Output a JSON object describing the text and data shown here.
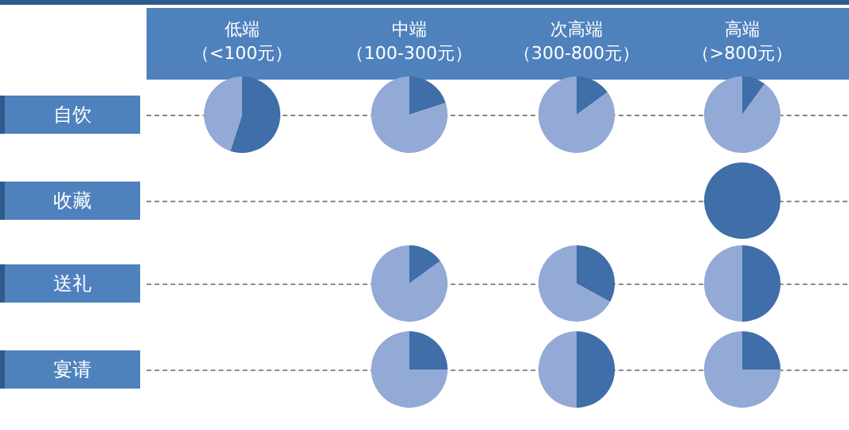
{
  "chart_data": [
    {
      "type": "other",
      "categories": [
        "低端（<100元）",
        "中端（100-300元）",
        "次高端（300-800元）",
        "高端（>800元）"
      ],
      "y_categories": [
        "自饮",
        "收藏",
        "送礼",
        "宴请"
      ]
    },
    {
      "type": "pie",
      "categories": [
        null,
        null
      ],
      "values": [
        55,
        45
      ],
      "colors": [
        "#3f6ea8",
        "#93a9d6"
      ]
    },
    {
      "type": "pie",
      "categories": [
        null,
        null
      ],
      "values": [
        20,
        80
      ],
      "colors": [
        "#3f6ea8",
        "#93a9d6"
      ]
    },
    {
      "type": "pie",
      "categories": [
        null,
        null
      ],
      "values": [
        15,
        85
      ],
      "colors": [
        "#3f6ea8",
        "#93a9d6"
      ]
    },
    {
      "type": "pie",
      "categories": [
        null,
        null
      ],
      "values": [
        10,
        90
      ],
      "colors": [
        "#3f6ea8",
        "#93a9d6"
      ]
    },
    {
      "type": "pie",
      "categories": [
        null
      ],
      "values": [
        100
      ],
      "colors": [
        "#3f6ea8"
      ]
    },
    {
      "type": "pie",
      "categories": [
        null,
        null
      ],
      "values": [
        15,
        85
      ],
      "colors": [
        "#3f6ea8",
        "#93a9d6"
      ]
    },
    {
      "type": "pie",
      "categories": [
        null,
        null
      ],
      "values": [
        33,
        67
      ],
      "colors": [
        "#3f6ea8",
        "#93a9d6"
      ]
    },
    {
      "type": "pie",
      "categories": [
        null,
        null
      ],
      "values": [
        50,
        50
      ],
      "colors": [
        "#3f6ea8",
        "#93a9d6"
      ]
    },
    {
      "type": "pie",
      "categories": [
        null,
        null
      ],
      "values": [
        25,
        75
      ],
      "colors": [
        "#3f6ea8",
        "#93a9d6"
      ]
    },
    {
      "type": "pie",
      "categories": [
        null,
        null
      ],
      "values": [
        50,
        50
      ],
      "colors": [
        "#3f6ea8",
        "#93a9d6"
      ]
    },
    {
      "type": "pie",
      "categories": [
        null,
        null
      ],
      "values": [
        25,
        75
      ],
      "colors": [
        "#3f6ea8",
        "#93a9d6"
      ]
    }
  ]
}
